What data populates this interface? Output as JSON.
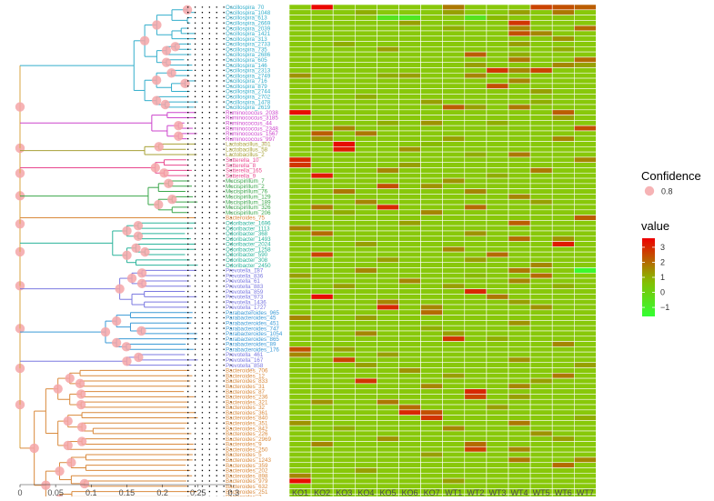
{
  "chart_data": {
    "type": "heatmap",
    "tree": {
      "x_ticks": [
        "0",
        "0.05",
        "0.1",
        "0.15",
        "0.2",
        "0.25",
        "0.3"
      ],
      "x_tick_values": [
        0,
        0.05,
        0.1,
        0.15,
        0.2,
        0.25,
        0.3
      ],
      "xlim": [
        0,
        0.3
      ]
    },
    "columns": [
      "KO1",
      "KO2",
      "KO3",
      "KO4",
      "KO5",
      "KO6",
      "KO7",
      "WT1",
      "WT2",
      "WT3",
      "WT4",
      "WT5",
      "WT6",
      "WT7"
    ],
    "groups": [
      {
        "genus": "Oscillospira",
        "color": "#33aecb",
        "tips": [
          "Oscillospira_70",
          "Oscillospira_1048",
          "Oscillospira_613",
          "Oscillospira_2669",
          "Oscillospira_2039",
          "Oscillospira_1421",
          "Oscillospira_313",
          "Oscillospira_2733",
          "Oscillospira_735",
          "Oscillospira_2686",
          "Oscillospira_605",
          "Oscillospira_146",
          "Oscillospira_2313",
          "Oscillospira_2749",
          "Oscillospira_716",
          "Oscillospira_879",
          "Oscillospira_2744",
          "Oscillospira_2702",
          "Oscillospira_1478",
          "Oscillospira_2619"
        ]
      },
      {
        "genus": "Ruminococcus",
        "color": "#cc44cc",
        "tips": [
          "Ruminococcus_2038",
          "Ruminococcus_3185",
          "Ruminococcus_44",
          "Ruminococcus_2348",
          "Ruminococcus_1567",
          "Ruminococcus_997"
        ]
      },
      {
        "genus": "Lactobacillus",
        "color": "#a7a136",
        "tips": [
          "Lactobacillus_301",
          "Lactobacillus_58",
          "Lactobacillus_2"
        ]
      },
      {
        "genus": "Sutterella",
        "color": "#e8478e",
        "tips": [
          "Sutterella_10",
          "Sutterella_8",
          "Sutterella_165",
          "Sutterella_9"
        ]
      },
      {
        "genus": "Mucispirillum",
        "color": "#3aa64a",
        "tips": [
          "Mucispirillum_7",
          "Mucispirillum_2",
          "Mucispirillum_76",
          "Mucispirillum_129",
          "Mucispirillum_189",
          "Mucispirillum_326",
          "Mucispirillum_206"
        ]
      },
      {
        "genus": "Bacteroides",
        "color": "#d9893b",
        "tips": [
          "Bacteroides_75"
        ]
      },
      {
        "genus": "Odoribacter",
        "color": "#2ab39a",
        "tips": [
          "Odoribacter_1696",
          "Odoribacter_1113",
          "Odoribacter_368",
          "Odoribacter_1493",
          "Odoribacter_2024",
          "Odoribacter_1258",
          "Odoribacter_590",
          "Odoribacter_308",
          "Odoribacter_2450"
        ]
      },
      {
        "genus": "Prevotella",
        "color": "#7b79e0",
        "tips": [
          "Prevotella_187",
          "Prevotella_836",
          "Prevotella_61",
          "Prevotella_883",
          "Prevotella_859",
          "Prevotella_973",
          "Prevotella_1436",
          "Prevotella_1727"
        ]
      },
      {
        "genus": "Parabacteroides",
        "color": "#3a9ad6",
        "tips": [
          "Parabacteroides_965",
          "Parabacteroides_45",
          "Parabacteroides_451",
          "Parabacteroides_747",
          "Parabacteroides_1054",
          "Parabacteroides_865",
          "Parabacteroides_89",
          "Parabacteroides_176"
        ]
      },
      {
        "genus": "Prevotella",
        "color": "#7b79e0",
        "tips": [
          "Prevotella_461",
          "Prevotella_167",
          "Prevotella_858"
        ]
      },
      {
        "genus": "Bacteroides",
        "color": "#d9893b",
        "tips": [
          "Bacteroides_706",
          "Bacteroides_12",
          "Bacteroides_833",
          "Bacteroides_31",
          "Bacteroides_87",
          "Bacteroides_236",
          "Bacteroides_321",
          "Bacteroides_32",
          "Bacteroides_361",
          "Bacteroides_840",
          "Bacteroides_351",
          "Bacteroides_842",
          "Bacteroides_226",
          "Bacteroides_2969",
          "Bacteroides_9",
          "Bacteroides_250",
          "Bacteroides_5",
          "Bacteroides_1243",
          "Bacteroides_359",
          "Bacteroides_202",
          "Bacteroides_898",
          "Bacteroides_979",
          "Bacteroides_632",
          "Bacteroides_251",
          "Bacteroides_2",
          "Bacteroides_324",
          "Bacteroides_84"
        ]
      }
    ],
    "legend": {
      "confidence_title": "Confidence",
      "confidence_value": "0.8",
      "confidence_color": "#f4a6a8",
      "value_title": "value",
      "value_ticks": [
        "3",
        "2",
        "1",
        "0",
        "−1"
      ],
      "value_tick_values": [
        3,
        2,
        1,
        0,
        -1
      ],
      "scale": {
        "low": "#33ff33",
        "mid": "#88bb00",
        "high": "#ee0000",
        "min": -1.6,
        "max": 3.6
      }
    },
    "heatmap_base": "#88c80a",
    "cell_values": {
      "0": {
        "1": 3.5,
        "7": 1.8,
        "11": 2.6,
        "12": 2.4,
        "13": 2.2
      },
      "1": {
        "3": 1.0,
        "7": 1.2,
        "10": 1.2,
        "12": 1.8
      },
      "2": {
        "4": -0.6,
        "5": -0.8,
        "8": -0.6,
        "9": 0.8
      },
      "3": {
        "5": 1.2,
        "10": 2.8
      },
      "4": {
        "7": 1.0,
        "10": 1.6,
        "13": 2.0
      },
      "5": {
        "10": 2.4,
        "11": 1.6
      },
      "6": {
        "12": 1.4
      },
      "7": {
        "2": 1.0,
        "10": 1.2
      },
      "8": {
        "4": 1.2,
        "12": 1.0
      },
      "9": {
        "8": 2.2,
        "10": 1.0
      },
      "10": {
        "10": 1.8,
        "13": 2.0
      },
      "11": {
        "8": 1.2,
        "12": 1.6,
        "13": 1.2
      },
      "12": {
        "9": 2.8,
        "10": 1.6,
        "11": 2.6
      },
      "13": {
        "0": 1.4,
        "4": 1.0,
        "5": 1.2,
        "8": 1.6
      },
      "14": {
        "10": 1.6
      },
      "15": {
        "9": 2.4
      },
      "16": {
        "11": 1.2
      },
      "17": {
        "3": 1.0
      },
      "18": {
        "6": 1.2,
        "11": 1.0
      },
      "19": {
        "7": 2.2,
        "8": 1.2,
        "10": 1.8
      },
      "20": {
        "0": 3.4,
        "12": 2.2
      },
      "21": {
        "12": 1.2
      },
      "22": {
        "4": 1.0,
        "6": 1.4,
        "9": 1.0
      },
      "23": {
        "2": 1.6,
        "13": 2.4
      },
      "24": {
        "1": 2.2,
        "3": 1.8
      },
      "25": {
        "1": 1.4,
        "7": 1.2,
        "12": 1.6
      },
      "26": {
        "2": 3.4,
        "6": 0.8
      },
      "27": {
        "2": 3.2,
        "5": 1.4
      },
      "28": {
        "8": 1.0,
        "10": 1.8
      },
      "29": {
        "0": 3.0,
        "13": 1.6
      },
      "30": {
        "0": 2.8,
        "5": 1.2
      },
      "31": {
        "4": 1.6,
        "11": 1.8
      },
      "32": {
        "1": 3.2,
        "9": 1.0
      },
      "33": {
        "7": 1.4
      },
      "34": {
        "4": 2.4,
        "6": 1.4
      },
      "35": {
        "2": 1.8,
        "8": 1.6
      },
      "36": {
        "10": 1.6
      },
      "37": {
        "3": 1.6,
        "11": 1.2
      },
      "38": {
        "1": 1.8,
        "4": 3.0,
        "8": 2.0
      },
      "39": {
        "2": 1.0,
        "6": 1.6
      },
      "40": {
        "13": 2.2
      },
      "41": {
        "5": 1.2,
        "10": 2.2
      },
      "42": {
        "0": 1.6
      },
      "43": {
        "1": 2.0,
        "8": 1.4
      },
      "44": {
        "10": 2.0,
        "12": 1.4
      },
      "45": {
        "3": 1.2,
        "12": 3.2
      },
      "46": {
        "7": 1.6
      },
      "47": {
        "1": 2.6,
        "9": 2.0
      },
      "48": {
        "4": 1.2,
        "8": 1.2
      },
      "49": {
        "11": 1.6
      },
      "50": {
        "3": 1.6,
        "10": 1.8,
        "13": -1.4
      },
      "51": {
        "0": 1.2,
        "8": 0.8,
        "11": 2.0
      },
      "52": {
        "5": 1.6,
        "10": 1.6
      },
      "53": {
        "2": 1.2,
        "7": 1.2,
        "12": 1.0
      },
      "54": {
        "8": 3.0
      },
      "55": {
        "1": 3.4,
        "9": 1.8
      },
      "56": {
        "4": 1.6,
        "10": 1.2
      },
      "57": {
        "4": 3.0,
        "6": 1.6,
        "11": 1.4
      },
      "58": {
        "6": 2.0
      },
      "59": {
        "0": 1.6,
        "3": 1.2
      },
      "60": {
        "10": 1.4
      },
      "61": {
        "6": 1.0
      },
      "62": {
        "3": 1.6,
        "7": 1.2
      },
      "63": {
        "7": 2.8,
        "9": 1.0
      },
      "64": {
        "12": 1.6
      },
      "65": {
        "0": 2.4,
        "2": 1.2
      },
      "66": {
        "0": 1.6,
        "4": 1.2
      },
      "67": {
        "2": 2.6,
        "10": 1.4
      },
      "68": {
        "3": 1.2,
        "13": 1.2
      },
      "69": {
        "5": 1.4
      },
      "70": {
        "7": 1.2,
        "12": 1.8
      },
      "71": {
        "3": 2.8,
        "11": 1.2
      },
      "72": {
        "6": 1.6,
        "10": 1.6
      },
      "73": {
        "8": 3.0
      },
      "74": {
        "8": 2.6,
        "10": 1.2
      },
      "75": {
        "1": 1.4,
        "4": 1.8
      },
      "76": {
        "5": 2.0,
        "9": 1.2
      },
      "77": {
        "5": 3.0,
        "6": 2.4
      },
      "78": {
        "6": 2.8,
        "13": 1.0
      },
      "79": {
        "0": 1.4,
        "10": 1.8
      },
      "80": {
        "2": 1.0,
        "7": 1.6
      },
      "81": {
        "11": 1.4
      },
      "82": {
        "4": 1.4,
        "12": 1.2
      },
      "83": {
        "1": 1.6,
        "8": 2.0
      },
      "84": {
        "8": 2.6,
        "10": 1.6
      },
      "85": {
        "6": 1.2
      },
      "86": {
        "10": 1.8,
        "13": 1.6
      },
      "87": {
        "12": 2.0
      },
      "88": {
        "3": 1.2
      },
      "89": {
        "0": 1.6
      },
      "90": {
        "0": 3.4,
        "7": 1.2
      }
    }
  }
}
